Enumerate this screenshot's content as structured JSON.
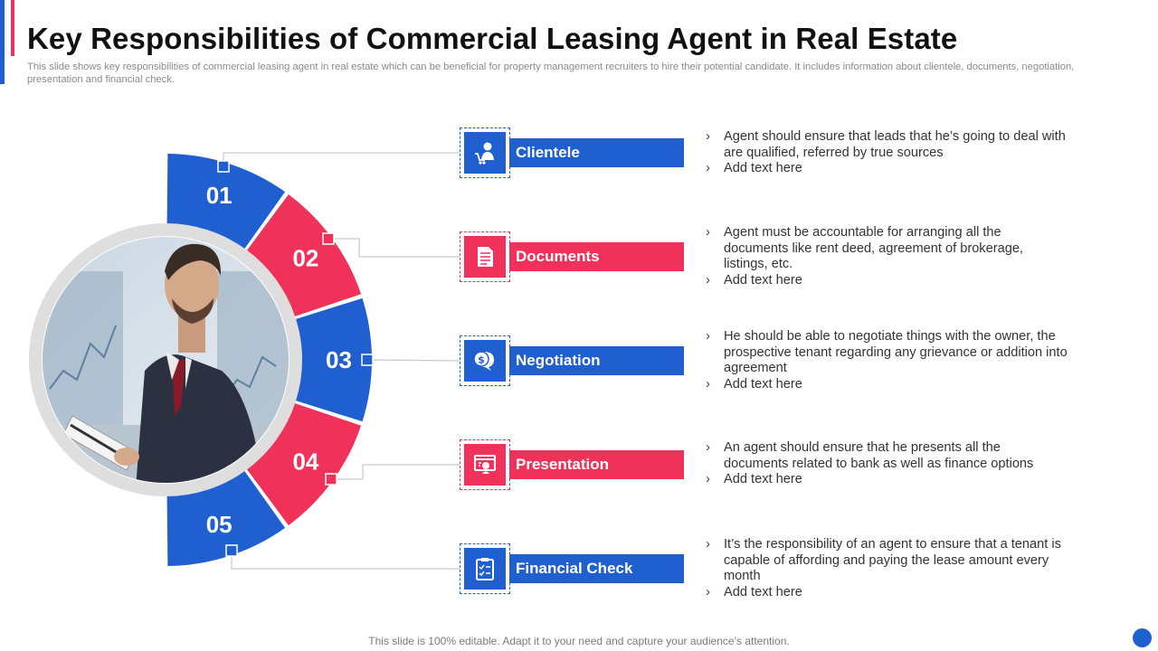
{
  "colors": {
    "blue": "#1f5fd0",
    "red": "#f0325a",
    "ring": "#dedede",
    "connector": "#c9c9c9"
  },
  "header": {
    "title": "Key Responsibilities of Commercial Leasing Agent in Real Estate",
    "subtitle": "This slide shows key responsibilities of commercial leasing agent in real estate which can be beneficial for property management recruiters to hire their potential candidate. It includes information about clientele, documents, negotiation, presentation and financial check."
  },
  "items": [
    {
      "number": "01",
      "label": "Clientele",
      "icon": "user-cart-icon",
      "color": "blue",
      "lines": [
        "Agent should ensure that leads that he’s going to deal with are qualified, referred by true sources",
        "Add text here"
      ]
    },
    {
      "number": "02",
      "label": "Documents",
      "icon": "document-icon",
      "color": "red",
      "lines": [
        "Agent must be accountable for arranging all the documents like rent deed, agreement of brokerage, listings, etc.",
        "Add text here"
      ]
    },
    {
      "number": "03",
      "label": "Negotiation",
      "icon": "speech-bubbles-dollar-icon",
      "color": "blue",
      "lines": [
        "He should be able to negotiate things with the owner, the prospective tenant regarding any grievance or addition into agreement",
        "Add text here"
      ]
    },
    {
      "number": "04",
      "label": "Presentation",
      "icon": "presentation-board-icon",
      "color": "red",
      "lines": [
        "An agent should ensure that he presents all the documents related to bank as well as finance options",
        "Add text here"
      ]
    },
    {
      "number": "05",
      "label": "Financial Check",
      "icon": "clipboard-checklist-icon",
      "color": "blue",
      "lines": [
        "It’s the responsibility of an agent to ensure that a tenant is capable of affording and paying the lease amount every month",
        "Add text here"
      ]
    }
  ],
  "footer": {
    "text": "This slide is 100% editable. Adapt it to your need and capture your audience’s attention."
  }
}
